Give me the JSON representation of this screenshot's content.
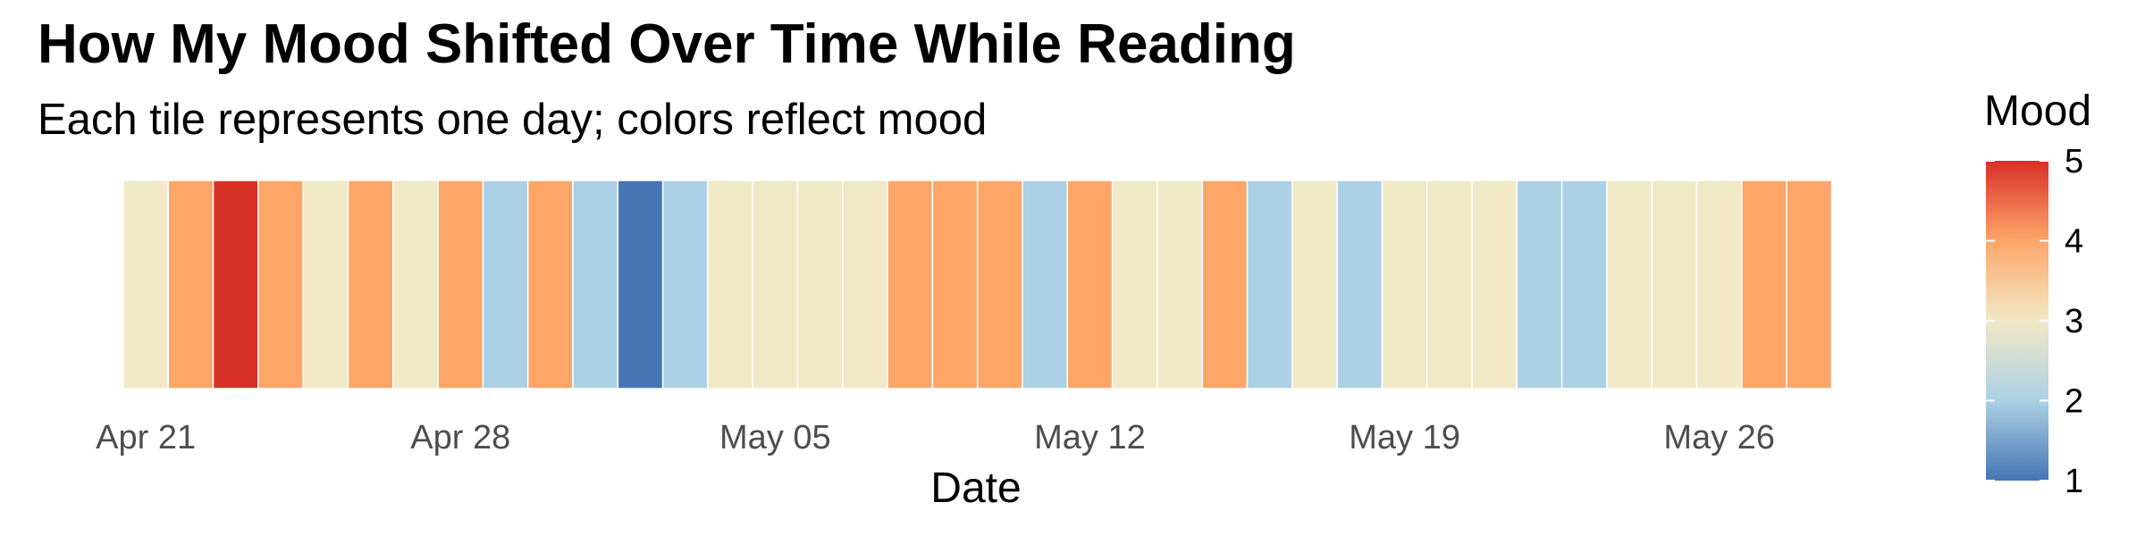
{
  "chart_data": {
    "type": "heatmap",
    "title": "How My Mood Shifted Over Time While Reading",
    "subtitle": "Each tile represents one day; colors reflect mood",
    "xlabel": "Date",
    "ylabel": "",
    "x_start": "2024-04-21",
    "x_ticks": [
      {
        "date": "2024-04-21",
        "label": "Apr 21"
      },
      {
        "date": "2024-04-28",
        "label": "Apr 28"
      },
      {
        "date": "2024-05-05",
        "label": "May 05"
      },
      {
        "date": "2024-05-12",
        "label": "May 12"
      },
      {
        "date": "2024-05-19",
        "label": "May 19"
      },
      {
        "date": "2024-05-26",
        "label": "May 26"
      }
    ],
    "days": [
      {
        "date": "2024-04-21",
        "mood": 3
      },
      {
        "date": "2024-04-22",
        "mood": 4
      },
      {
        "date": "2024-04-23",
        "mood": 5
      },
      {
        "date": "2024-04-24",
        "mood": 4
      },
      {
        "date": "2024-04-25",
        "mood": 3
      },
      {
        "date": "2024-04-26",
        "mood": 4
      },
      {
        "date": "2024-04-27",
        "mood": 3
      },
      {
        "date": "2024-04-28",
        "mood": 4
      },
      {
        "date": "2024-04-29",
        "mood": 2
      },
      {
        "date": "2024-04-30",
        "mood": 4
      },
      {
        "date": "2024-05-01",
        "mood": 2
      },
      {
        "date": "2024-05-02",
        "mood": 1
      },
      {
        "date": "2024-05-03",
        "mood": 2
      },
      {
        "date": "2024-05-04",
        "mood": 3
      },
      {
        "date": "2024-05-05",
        "mood": 3
      },
      {
        "date": "2024-05-06",
        "mood": 3
      },
      {
        "date": "2024-05-07",
        "mood": 3
      },
      {
        "date": "2024-05-08",
        "mood": 4
      },
      {
        "date": "2024-05-09",
        "mood": 4
      },
      {
        "date": "2024-05-10",
        "mood": 4
      },
      {
        "date": "2024-05-11",
        "mood": 2
      },
      {
        "date": "2024-05-12",
        "mood": 4
      },
      {
        "date": "2024-05-13",
        "mood": 3
      },
      {
        "date": "2024-05-14",
        "mood": 3
      },
      {
        "date": "2024-05-15",
        "mood": 4
      },
      {
        "date": "2024-05-16",
        "mood": 2
      },
      {
        "date": "2024-05-17",
        "mood": 3
      },
      {
        "date": "2024-05-18",
        "mood": 2
      },
      {
        "date": "2024-05-19",
        "mood": 3
      },
      {
        "date": "2024-05-20",
        "mood": 3
      },
      {
        "date": "2024-05-21",
        "mood": 3
      },
      {
        "date": "2024-05-22",
        "mood": 2
      },
      {
        "date": "2024-05-23",
        "mood": 2
      },
      {
        "date": "2024-05-24",
        "mood": 3
      },
      {
        "date": "2024-05-25",
        "mood": 3
      },
      {
        "date": "2024-05-26",
        "mood": 3
      },
      {
        "date": "2024-05-27",
        "mood": 4
      },
      {
        "date": "2024-05-28",
        "mood": 4
      }
    ],
    "legend": {
      "title": "Mood",
      "position": "right",
      "range": [
        1,
        5
      ],
      "ticks": [
        5,
        4,
        3,
        2,
        1
      ],
      "palette": [
        {
          "value": 1,
          "color": "#4575b4"
        },
        {
          "value": 2,
          "color": "#abd0e5"
        },
        {
          "value": 3,
          "color": "#f1e8c6"
        },
        {
          "value": 4,
          "color": "#fda668"
        },
        {
          "value": 5,
          "color": "#d73027"
        }
      ]
    },
    "grid": false
  }
}
